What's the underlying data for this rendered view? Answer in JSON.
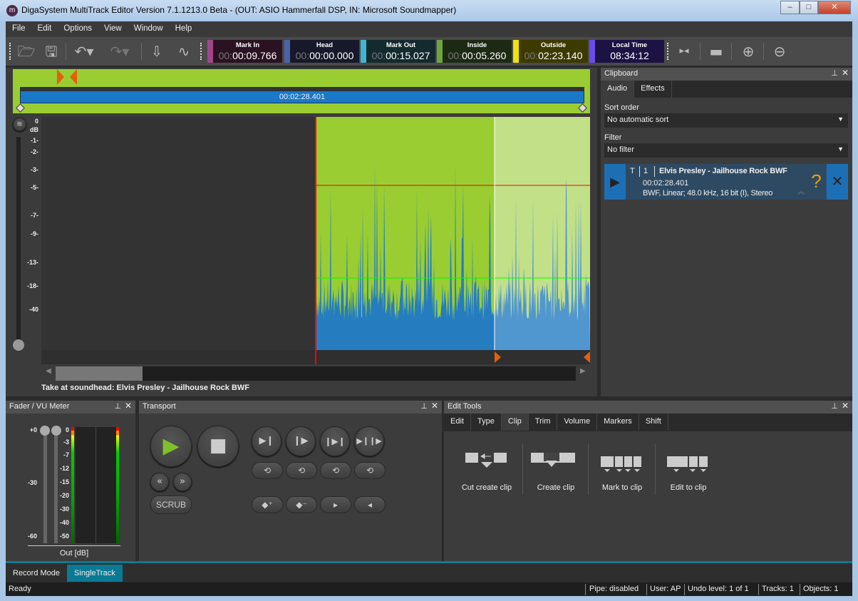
{
  "window": {
    "title": "DigaSystem MultiTrack Editor Version 7.1.1213.0 Beta - (OUT: ASIO Hammerfall DSP, IN: Microsoft Soundmapper)",
    "icon": "m",
    "min": "–",
    "max": "□",
    "close": "✕"
  },
  "menu": [
    "File",
    "Edit",
    "Options",
    "View",
    "Window",
    "Help"
  ],
  "toolbar": {
    "icons": [
      "open-folder-icon",
      "save-icon",
      "undo-icon",
      "redo-icon",
      "import-icon",
      "waveform-ear-icon"
    ],
    "counters": [
      {
        "label": "Mark In",
        "dim": "00:",
        "value": "00:09.766",
        "color": "#a0478c",
        "bg": "#2a1222"
      },
      {
        "label": "Head",
        "dim": "00:",
        "value": "00:00.000",
        "color": "#4a62a8",
        "bg": "#16192a"
      },
      {
        "label": "Mark Out",
        "dim": "00:",
        "value": "00:15.027",
        "color": "#41b6d0",
        "bg": "#132a2e"
      },
      {
        "label": "Inside",
        "dim": "00:",
        "value": "00:05.260",
        "color": "#6ea63a",
        "bg": "#1c2a14"
      },
      {
        "label": "Outside",
        "dim": "00:",
        "value": "02:23.140",
        "color": "#f0e400",
        "bg": "#3d3a00"
      },
      {
        "label": "Local Time",
        "dim": "",
        "value": "08:34:12",
        "color": "#6b4ce8",
        "bg": "#1c1244"
      }
    ]
  },
  "editor": {
    "overview_duration": "00:02:28.401",
    "db_scale": [
      "0",
      "-1-",
      "-2-",
      "-3-",
      "-5-",
      "-7-",
      "-9-",
      "-13-",
      "-18-",
      "-40"
    ],
    "db_unit": "dB",
    "colors": {
      "selection": "#9acd32",
      "outside": "#b3d96b",
      "waveform": "#1f78c8",
      "playhead": "#ff0000"
    },
    "take_label": "Take at soundhead: Elvis Presley - Jailhouse Rock BWF"
  },
  "clipboard": {
    "title": "Clipboard",
    "tabs": [
      "Audio",
      "Effects"
    ],
    "sort_label": "Sort order",
    "sort_value": "No automatic sort",
    "filter_label": "Filter",
    "filter_value": "No filter",
    "item": {
      "type": "T",
      "index": "1",
      "title": "Elvis Presley - Jailhouse Rock BWF",
      "duration": "00:02:28.401",
      "format": "BWF, Linear; 48.0 kHz, 16 bit (I), Stereo"
    }
  },
  "fader": {
    "title": "Fader / VU Meter",
    "fader_scale": [
      "+0",
      "-30",
      "-60"
    ],
    "vu_scale": [
      "0",
      "-3",
      "-7",
      "-12",
      "-15",
      "-20",
      "-30",
      "-40",
      "-50"
    ],
    "unit": "Out [dB]"
  },
  "transport": {
    "title": "Transport",
    "scrub": "SCRUB"
  },
  "edit_tools": {
    "title": "Edit Tools",
    "tabs": [
      "Edit",
      "Type",
      "Clip",
      "Trim",
      "Volume",
      "Markers",
      "Shift"
    ],
    "active_tab": "Clip",
    "tools": [
      "Cut create clip",
      "Create clip",
      "Mark to clip",
      "Edit to clip"
    ]
  },
  "mode_tabs": [
    "Record Mode",
    "SingleTrack"
  ],
  "status": {
    "text": "Ready",
    "pipe": "Pipe: disabled",
    "user": "User: AP",
    "undo": "Undo level: 1 of 1",
    "tracks": "Tracks: 1",
    "objects": "Objects: 1"
  }
}
